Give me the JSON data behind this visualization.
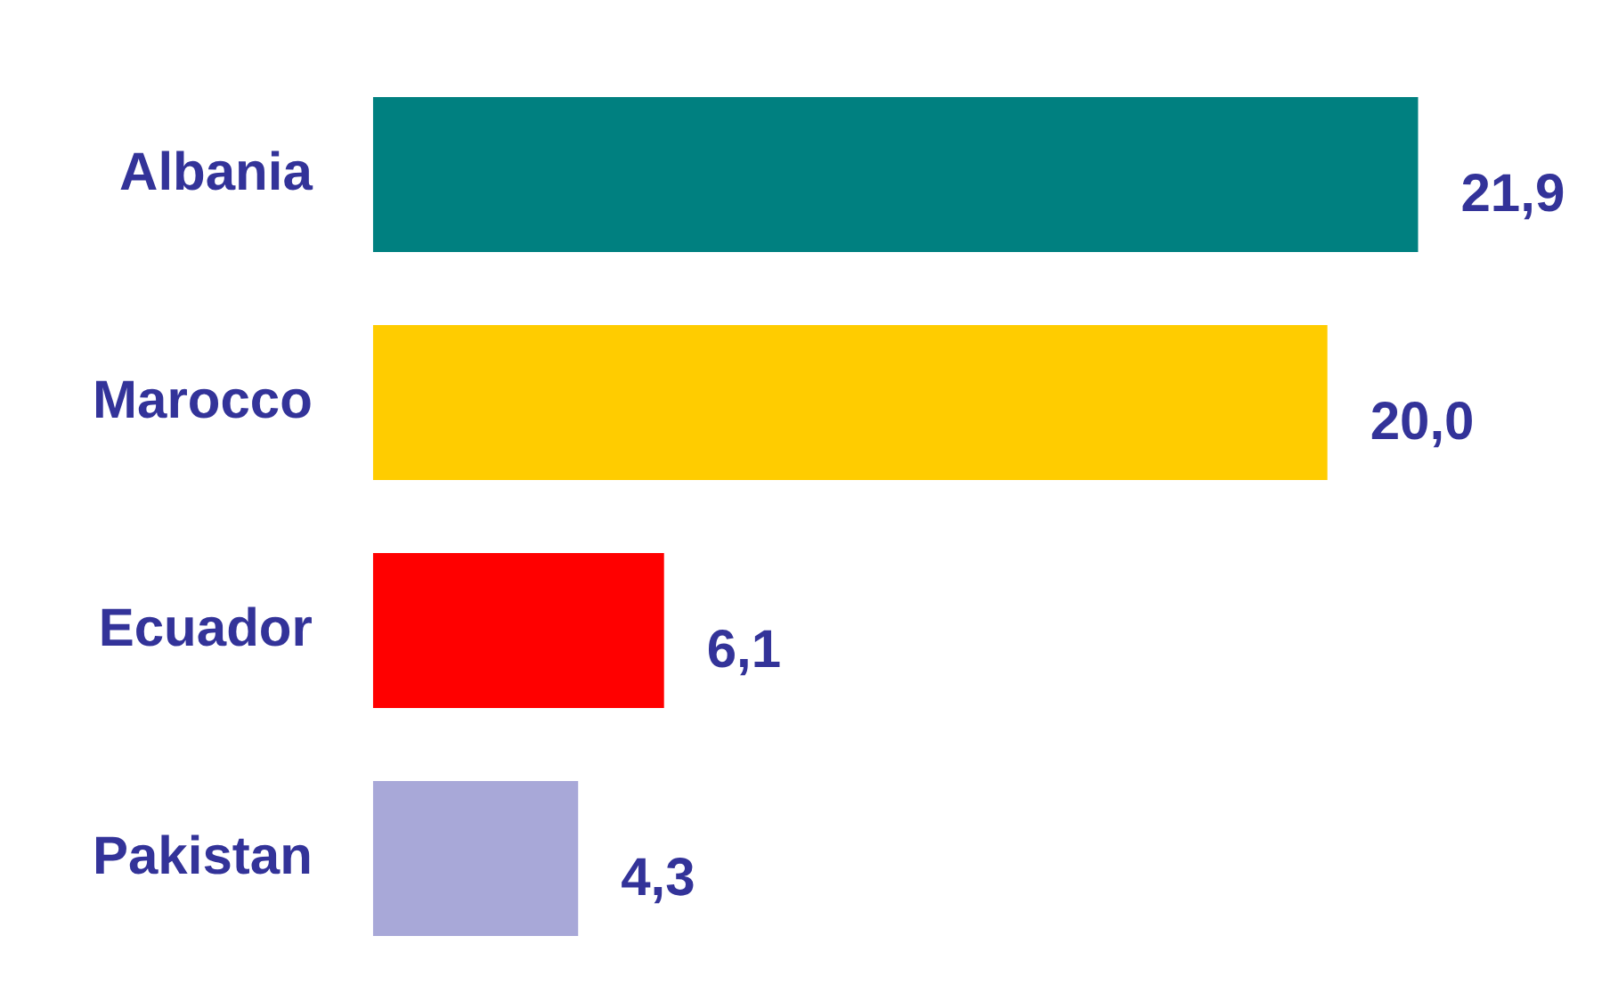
{
  "chart_data": {
    "type": "bar",
    "orientation": "horizontal",
    "categories": [
      "Albania",
      "Marocco",
      "Ecuador",
      "Pakistan"
    ],
    "values": [
      21.9,
      20.0,
      6.1,
      4.3
    ],
    "colors": [
      "#008080",
      "#ffcc00",
      "#ff0000",
      "#a8a8d8"
    ],
    "value_labels": [
      "21,9",
      "20,0",
      "6,1",
      "4,3"
    ]
  }
}
